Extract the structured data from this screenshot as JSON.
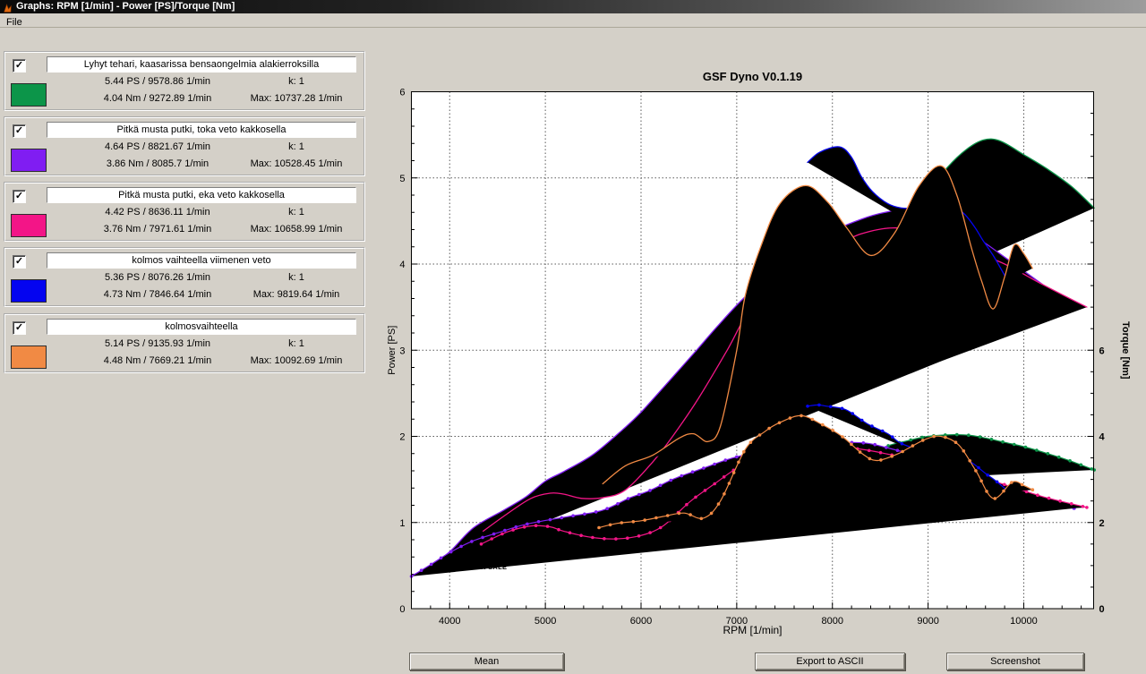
{
  "window": {
    "title": "Graphs: RPM [1/min] - Power [PS]/Torque [Nm]",
    "menu": [
      "File"
    ]
  },
  "buttons": {
    "mean": "Mean",
    "export": "Export to ASCII",
    "screenshot": "Screenshot"
  },
  "legend": {
    "entries": [
      {
        "name": "Lyhyt tehari, kaasarissa bensaongelmia alakierroksilla",
        "checked": true,
        "color": "#0c9549",
        "power_stat": "5.44 PS / 9578.86 1/min",
        "k_stat": "k: 1",
        "torque_stat": "4.04 Nm / 9272.89 1/min",
        "max_stat": "Max: 10737.28 1/min"
      },
      {
        "name": "Pitkä musta putki, toka veto kakkosella",
        "checked": true,
        "color": "#801df2",
        "power_stat": "4.64 PS / 8821.67 1/min",
        "k_stat": "k: 1",
        "torque_stat": "3.86 Nm / 8085.7 1/min",
        "max_stat": "Max: 10528.45 1/min"
      },
      {
        "name": "Pitkä musta putki, eka veto kakkosella",
        "checked": true,
        "color": "#f31587",
        "power_stat": "4.42 PS / 8636.11 1/min",
        "k_stat": "k: 1",
        "torque_stat": "3.76 Nm / 7971.61 1/min",
        "max_stat": "Max: 10658.99 1/min"
      },
      {
        "name": "kolmos vaihteella viimenen veto",
        "checked": true,
        "color": "#0404f0",
        "power_stat": "5.36 PS / 8076.26 1/min",
        "k_stat": "k: 1",
        "torque_stat": "4.73 Nm / 7846.64 1/min",
        "max_stat": "Max: 9819.64 1/min"
      },
      {
        "name": "kolmosvaihteella",
        "checked": true,
        "color": "#f18a44",
        "power_stat": "5.14 PS / 9135.93 1/min",
        "k_stat": "k: 1",
        "torque_stat": "4.48 Nm / 7669.21 1/min",
        "max_stat": "Max: 10092.69 1/min"
      }
    ]
  },
  "chart_data": {
    "type": "line",
    "title": "GSF Dyno V0.1.19",
    "xlabel": "RPM [1/min]",
    "ylabel_left": "Power [PS]",
    "ylabel_right": "Torque [Nm]",
    "xlim": [
      3600,
      10730
    ],
    "ylim_left": [
      0,
      6
    ],
    "ylim_right": [
      0,
      12
    ],
    "x_ticks": [
      4000,
      5000,
      6000,
      7000,
      8000,
      9000,
      10000
    ],
    "left_tick_labels": [
      0,
      1,
      2,
      3,
      4,
      5,
      6
    ],
    "right_tick_labels": [
      0,
      2,
      4,
      6
    ],
    "grid": "dotted",
    "annotation": {
      "text": "NOT FOR SALE",
      "rpm": 4043,
      "ps": 0.49
    },
    "series": [
      {
        "name": "Lyhyt tehari, kaasarissa bensaongelmia alakierroksilla",
        "color": "#0c9549",
        "power": [
          [
            7960,
            3.28
          ],
          [
            8150,
            3.62
          ],
          [
            8350,
            3.95
          ],
          [
            8580,
            4.26
          ],
          [
            8800,
            4.56
          ],
          [
            9000,
            4.84
          ],
          [
            9200,
            5.12
          ],
          [
            9400,
            5.33
          ],
          [
            9579,
            5.44
          ],
          [
            9750,
            5.43
          ],
          [
            10000,
            5.27
          ],
          [
            10250,
            5.1
          ],
          [
            10500,
            4.9
          ],
          [
            10737,
            4.65
          ]
        ],
        "torque": [
          [
            7970,
            2.92
          ],
          [
            8140,
            3.22
          ],
          [
            8360,
            3.54
          ],
          [
            8580,
            3.78
          ],
          [
            8790,
            3.9
          ],
          [
            9000,
            4.0
          ],
          [
            9273,
            4.04
          ],
          [
            9450,
            4.02
          ],
          [
            9600,
            3.96
          ],
          [
            9800,
            3.86
          ],
          [
            10000,
            3.76
          ],
          [
            10250,
            3.6
          ],
          [
            10500,
            3.42
          ],
          [
            10737,
            3.22
          ]
        ]
      },
      {
        "name": "Pitkä musta putki, toka veto kakkosella",
        "color": "#801df2",
        "power": [
          [
            3600,
            0.38
          ],
          [
            3790,
            0.49
          ],
          [
            4000,
            0.66
          ],
          [
            4250,
            0.94
          ],
          [
            4560,
            1.14
          ],
          [
            4800,
            1.3
          ],
          [
            5000,
            1.48
          ],
          [
            5190,
            1.59
          ],
          [
            5500,
            1.79
          ],
          [
            5810,
            2.08
          ],
          [
            6000,
            2.28
          ],
          [
            6300,
            2.65
          ],
          [
            6580,
            3.0
          ],
          [
            6800,
            3.28
          ],
          [
            7070,
            3.6
          ],
          [
            7400,
            3.92
          ],
          [
            7700,
            4.18
          ],
          [
            8000,
            4.38
          ],
          [
            8300,
            4.52
          ],
          [
            8550,
            4.6
          ],
          [
            8822,
            4.64
          ],
          [
            9100,
            4.58
          ],
          [
            9330,
            4.44
          ],
          [
            9600,
            4.24
          ],
          [
            9800,
            4.08
          ],
          [
            10000,
            3.92
          ],
          [
            10250,
            3.72
          ],
          [
            10528,
            3.5
          ]
        ],
        "torque": [
          [
            3600,
            0.75
          ],
          [
            3800,
            1.02
          ],
          [
            4000,
            1.3
          ],
          [
            4230,
            1.56
          ],
          [
            4500,
            1.76
          ],
          [
            4800,
            1.96
          ],
          [
            5190,
            2.12
          ],
          [
            5590,
            2.28
          ],
          [
            5870,
            2.56
          ],
          [
            6090,
            2.74
          ],
          [
            6350,
            3.02
          ],
          [
            6650,
            3.26
          ],
          [
            6960,
            3.5
          ],
          [
            7310,
            3.68
          ],
          [
            7660,
            3.8
          ],
          [
            7925,
            3.83
          ],
          [
            8086,
            3.86
          ],
          [
            8360,
            3.84
          ],
          [
            8600,
            3.72
          ],
          [
            9080,
            3.43
          ],
          [
            9400,
            3.22
          ],
          [
            9700,
            2.94
          ],
          [
            10000,
            2.62
          ],
          [
            10250,
            2.48
          ],
          [
            10528,
            2.33
          ]
        ]
      },
      {
        "name": "Pitkä musta putki, eka veto kakkosella",
        "color": "#f31587",
        "power": [
          [
            4350,
            0.9
          ],
          [
            4600,
            1.1
          ],
          [
            4850,
            1.28
          ],
          [
            5050,
            1.34
          ],
          [
            5190,
            1.33
          ],
          [
            5380,
            1.28
          ],
          [
            5610,
            1.29
          ],
          [
            5840,
            1.38
          ],
          [
            6120,
            1.7
          ],
          [
            6330,
            2.0
          ],
          [
            6600,
            2.44
          ],
          [
            6900,
            3.0
          ],
          [
            7100,
            3.4
          ],
          [
            7400,
            3.8
          ],
          [
            7700,
            4.05
          ],
          [
            8000,
            4.2
          ],
          [
            8300,
            4.35
          ],
          [
            8636,
            4.42
          ],
          [
            9000,
            4.36
          ],
          [
            9400,
            4.18
          ],
          [
            9800,
            4.0
          ],
          [
            10200,
            3.76
          ],
          [
            10659,
            3.5
          ]
        ],
        "torque": [
          [
            4330,
            1.5
          ],
          [
            4600,
            1.78
          ],
          [
            4850,
            1.92
          ],
          [
            5050,
            1.9
          ],
          [
            5190,
            1.8
          ],
          [
            5470,
            1.66
          ],
          [
            5750,
            1.62
          ],
          [
            6000,
            1.7
          ],
          [
            6230,
            1.92
          ],
          [
            6520,
            2.5
          ],
          [
            6770,
            2.9
          ],
          [
            7000,
            3.26
          ],
          [
            7210,
            3.48
          ],
          [
            7560,
            3.64
          ],
          [
            7870,
            3.72
          ],
          [
            7971,
            3.76
          ],
          [
            8300,
            3.7
          ],
          [
            8640,
            3.56
          ],
          [
            9080,
            3.36
          ],
          [
            9400,
            3.16
          ],
          [
            9800,
            2.88
          ],
          [
            10200,
            2.6
          ],
          [
            10659,
            2.35
          ]
        ]
      },
      {
        "name": "kolmos vaihteella viimenen veto",
        "color": "#0404f0",
        "power": [
          [
            7740,
            5.18
          ],
          [
            7870,
            5.3
          ],
          [
            8076,
            5.36
          ],
          [
            8200,
            5.24
          ],
          [
            8300,
            5.02
          ],
          [
            8420,
            4.84
          ],
          [
            8580,
            4.7
          ],
          [
            8720,
            4.65
          ],
          [
            8850,
            4.65
          ],
          [
            9000,
            4.67
          ],
          [
            9180,
            4.7
          ],
          [
            9360,
            4.6
          ],
          [
            9480,
            4.44
          ],
          [
            9570,
            4.28
          ],
          [
            9680,
            4.1
          ],
          [
            9819,
            3.83
          ]
        ],
        "torque": [
          [
            7740,
            4.7
          ],
          [
            7846,
            4.73
          ],
          [
            7940,
            4.7
          ],
          [
            8140,
            4.62
          ],
          [
            8360,
            4.3
          ],
          [
            8580,
            4.06
          ],
          [
            8700,
            3.86
          ],
          [
            8850,
            3.73
          ],
          [
            9000,
            3.68
          ],
          [
            9180,
            3.63
          ],
          [
            9300,
            3.55
          ],
          [
            9450,
            3.4
          ],
          [
            9600,
            3.14
          ],
          [
            9700,
            2.98
          ],
          [
            9819,
            2.76
          ]
        ]
      },
      {
        "name": "kolmosvaihteella",
        "color": "#f18a44",
        "power": [
          [
            5600,
            1.45
          ],
          [
            5840,
            1.66
          ],
          [
            6120,
            1.78
          ],
          [
            6400,
            1.98
          ],
          [
            6550,
            2.03
          ],
          [
            6700,
            1.94
          ],
          [
            6830,
            2.12
          ],
          [
            7000,
            3.0
          ],
          [
            7090,
            3.64
          ],
          [
            7250,
            4.2
          ],
          [
            7450,
            4.7
          ],
          [
            7720,
            4.91
          ],
          [
            7950,
            4.72
          ],
          [
            8150,
            4.42
          ],
          [
            8400,
            4.1
          ],
          [
            8650,
            4.36
          ],
          [
            8900,
            4.9
          ],
          [
            9136,
            5.14
          ],
          [
            9300,
            4.8
          ],
          [
            9450,
            4.2
          ],
          [
            9560,
            3.8
          ],
          [
            9680,
            3.48
          ],
          [
            9800,
            3.85
          ],
          [
            9900,
            4.22
          ],
          [
            10000,
            4.12
          ],
          [
            10092,
            3.95
          ]
        ],
        "torque": [
          [
            5560,
            1.88
          ],
          [
            5750,
            1.98
          ],
          [
            6000,
            2.04
          ],
          [
            6230,
            2.14
          ],
          [
            6450,
            2.22
          ],
          [
            6650,
            2.1
          ],
          [
            6830,
            2.5
          ],
          [
            7090,
            3.7
          ],
          [
            7300,
            4.12
          ],
          [
            7450,
            4.32
          ],
          [
            7669,
            4.48
          ],
          [
            7870,
            4.3
          ],
          [
            8100,
            4.0
          ],
          [
            8310,
            3.6
          ],
          [
            8460,
            3.44
          ],
          [
            8670,
            3.58
          ],
          [
            8790,
            3.72
          ],
          [
            8980,
            3.94
          ],
          [
            9135,
            4.0
          ],
          [
            9320,
            3.8
          ],
          [
            9500,
            3.2
          ],
          [
            9680,
            2.56
          ],
          [
            9880,
            2.94
          ],
          [
            10000,
            2.86
          ],
          [
            10092,
            2.76
          ]
        ]
      }
    ]
  }
}
